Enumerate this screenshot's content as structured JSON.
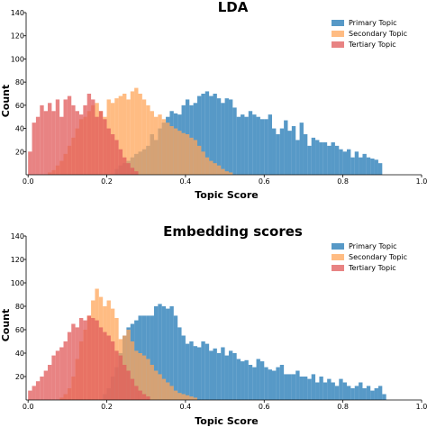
{
  "chart_data": [
    {
      "type": "bar",
      "title": "LDA",
      "xlabel": "Topic Score",
      "ylabel": "Count",
      "xlim": [
        -0.005,
        1.0
      ],
      "ylim": [
        0,
        140
      ],
      "xticks": [
        "0.0",
        "0.2",
        "0.4",
        "0.6",
        "0.8",
        "1.0"
      ],
      "xtick_values": [
        0.0,
        0.2,
        0.4,
        0.6,
        0.8,
        1.0
      ],
      "yticks": [
        "20",
        "40",
        "60",
        "80",
        "100",
        "120",
        "140"
      ],
      "ytick_values": [
        20,
        40,
        60,
        80,
        100,
        120,
        140
      ],
      "legend_position": "top-right",
      "grid": false,
      "series": [
        {
          "name": "Primary Topic",
          "color": "#1f77b4",
          "bin_start": 0.22,
          "bin_width": 0.01,
          "values": [
            5,
            8,
            10,
            12,
            15,
            18,
            20,
            22,
            25,
            35,
            30,
            40,
            45,
            50,
            55,
            53,
            52,
            60,
            65,
            60,
            62,
            68,
            70,
            72,
            68,
            70,
            66,
            62,
            66,
            65,
            58,
            50,
            52,
            50,
            55,
            52,
            50,
            48,
            48,
            52,
            40,
            35,
            40,
            47,
            38,
            42,
            30,
            45,
            35,
            25,
            32,
            30,
            28,
            28,
            25,
            28,
            25,
            22,
            20,
            22,
            15,
            20,
            15,
            18,
            15,
            14,
            13,
            10
          ]
        },
        {
          "name": "Secondary Topic",
          "color": "#ffa55a",
          "bin_start": 0.05,
          "bin_width": 0.01,
          "values": [
            2,
            4,
            8,
            12,
            18,
            25,
            32,
            40,
            48,
            50,
            55,
            60,
            62,
            55,
            50,
            65,
            62,
            66,
            68,
            70,
            65,
            72,
            75,
            70,
            65,
            60,
            55,
            50,
            52,
            48,
            45,
            42,
            40,
            38,
            36,
            35,
            32,
            30,
            25,
            20,
            15,
            12,
            10,
            8,
            5,
            3,
            2
          ]
        },
        {
          "name": "Tertiary Topic",
          "color": "#e05a5a",
          "bin_start": 0.0,
          "bin_width": 0.01,
          "values": [
            20,
            45,
            50,
            60,
            55,
            62,
            55,
            65,
            50,
            65,
            68,
            60,
            55,
            52,
            60,
            70,
            65,
            50,
            55,
            48,
            40,
            35,
            30,
            22,
            15,
            10,
            6,
            3
          ]
        }
      ]
    },
    {
      "type": "bar",
      "title": "Embedding scores",
      "xlabel": "Topic Score",
      "ylabel": "Count",
      "xlim": [
        -0.005,
        1.0
      ],
      "ylim": [
        0,
        140
      ],
      "xticks": [
        "0.0",
        "0.2",
        "0.4",
        "0.6",
        "0.8",
        "1.0"
      ],
      "xtick_values": [
        0.0,
        0.2,
        0.4,
        0.6,
        0.8,
        1.0
      ],
      "yticks": [
        "20",
        "40",
        "60",
        "80",
        "100",
        "120",
        "140"
      ],
      "ytick_values": [
        20,
        40,
        60,
        80,
        100,
        120,
        140
      ],
      "legend_position": "top-right",
      "grid": false,
      "series": [
        {
          "name": "Primary Topic",
          "color": "#1f77b4",
          "bin_start": 0.19,
          "bin_width": 0.01,
          "values": [
            5,
            10,
            20,
            28,
            40,
            55,
            62,
            65,
            68,
            72,
            72,
            72,
            72,
            80,
            82,
            80,
            78,
            80,
            72,
            62,
            55,
            48,
            50,
            46,
            45,
            50,
            48,
            42,
            44,
            40,
            45,
            38,
            42,
            40,
            35,
            33,
            34,
            30,
            28,
            35,
            33,
            28,
            26,
            25,
            28,
            30,
            22,
            22,
            22,
            25,
            20,
            20,
            18,
            22,
            15,
            20,
            15,
            18,
            15,
            12,
            18,
            15,
            12,
            10,
            12,
            15,
            10,
            12,
            8,
            10,
            12,
            5
          ]
        },
        {
          "name": "Secondary Topic",
          "color": "#ffa55a",
          "bin_start": 0.08,
          "bin_width": 0.01,
          "values": [
            2,
            5,
            10,
            20,
            35,
            50,
            60,
            72,
            85,
            95,
            88,
            80,
            85,
            78,
            70,
            52,
            55,
            60,
            50,
            42,
            40,
            38,
            35,
            30,
            25,
            22,
            18,
            15,
            12,
            8,
            6,
            5,
            4,
            3,
            2
          ]
        },
        {
          "name": "Tertiary Topic",
          "color": "#e05a5a",
          "bin_start": 0.0,
          "bin_width": 0.01,
          "values": [
            8,
            12,
            16,
            20,
            25,
            30,
            38,
            42,
            45,
            50,
            58,
            65,
            62,
            70,
            68,
            72,
            70,
            68,
            62,
            58,
            55,
            50,
            42,
            38,
            30,
            25,
            18,
            12,
            8,
            5,
            3
          ]
        }
      ]
    }
  ]
}
